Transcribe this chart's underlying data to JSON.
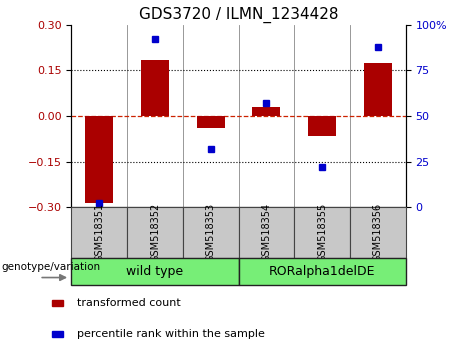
{
  "title": "GDS3720 / ILMN_1234428",
  "samples": [
    "GSM518351",
    "GSM518352",
    "GSM518353",
    "GSM518354",
    "GSM518355",
    "GSM518356"
  ],
  "bar_values": [
    -0.285,
    0.185,
    -0.04,
    0.03,
    -0.065,
    0.175
  ],
  "percentile_values": [
    2,
    92,
    32,
    57,
    22,
    88
  ],
  "ylim_left": [
    -0.3,
    0.3
  ],
  "ylim_right": [
    0,
    100
  ],
  "yticks_left": [
    -0.3,
    -0.15,
    0,
    0.15,
    0.3
  ],
  "yticks_right": [
    0,
    25,
    50,
    75,
    100
  ],
  "bar_color": "#AA0000",
  "point_color": "#0000CC",
  "zero_line_color": "#CC2200",
  "dotted_line_color": "#000000",
  "group_header": "genotype/variation",
  "legend_items": [
    {
      "label": "transformed count",
      "color": "#AA0000"
    },
    {
      "label": "percentile rank within the sample",
      "color": "#0000CC"
    }
  ],
  "bar_width": 0.5,
  "sample_box_color": "#C8C8C8",
  "group_ranges": [
    [
      -0.5,
      2.5,
      "wild type"
    ],
    [
      2.5,
      5.5,
      "RORalpha1delDE"
    ]
  ],
  "group_color": "#77EE77",
  "title_fontsize": 11,
  "tick_fontsize": 8,
  "sample_fontsize": 7,
  "group_fontsize": 9,
  "legend_fontsize": 8
}
